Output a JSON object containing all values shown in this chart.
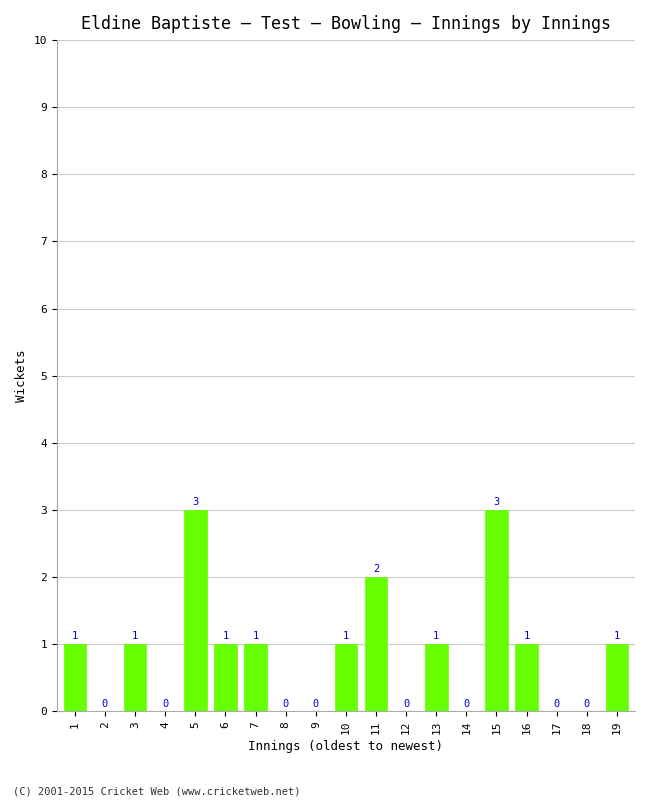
{
  "title": "Eldine Baptiste – Test – Bowling – Innings by Innings",
  "xlabel": "Innings (oldest to newest)",
  "ylabel": "Wickets",
  "categories": [
    "1",
    "2",
    "3",
    "4",
    "5",
    "6",
    "7",
    "8",
    "9",
    "10",
    "11",
    "12",
    "13",
    "14",
    "15",
    "16",
    "17",
    "18",
    "19"
  ],
  "values": [
    1,
    0,
    1,
    0,
    3,
    1,
    1,
    0,
    0,
    1,
    2,
    0,
    1,
    0,
    3,
    1,
    0,
    0,
    1
  ],
  "bar_color": "#66ff00",
  "bar_edge_color": "#66ff00",
  "ylim": [
    0,
    10
  ],
  "yticks": [
    0,
    1,
    2,
    3,
    4,
    5,
    6,
    7,
    8,
    9,
    10
  ],
  "label_color": "#0000cc",
  "title_fontsize": 12,
  "axis_fontsize": 9,
  "tick_fontsize": 8,
  "label_fontsize": 7.5,
  "footer": "(C) 2001-2015 Cricket Web (www.cricketweb.net)",
  "background_color": "#ffffff",
  "grid_color": "#cccccc",
  "bar_width": 0.75
}
